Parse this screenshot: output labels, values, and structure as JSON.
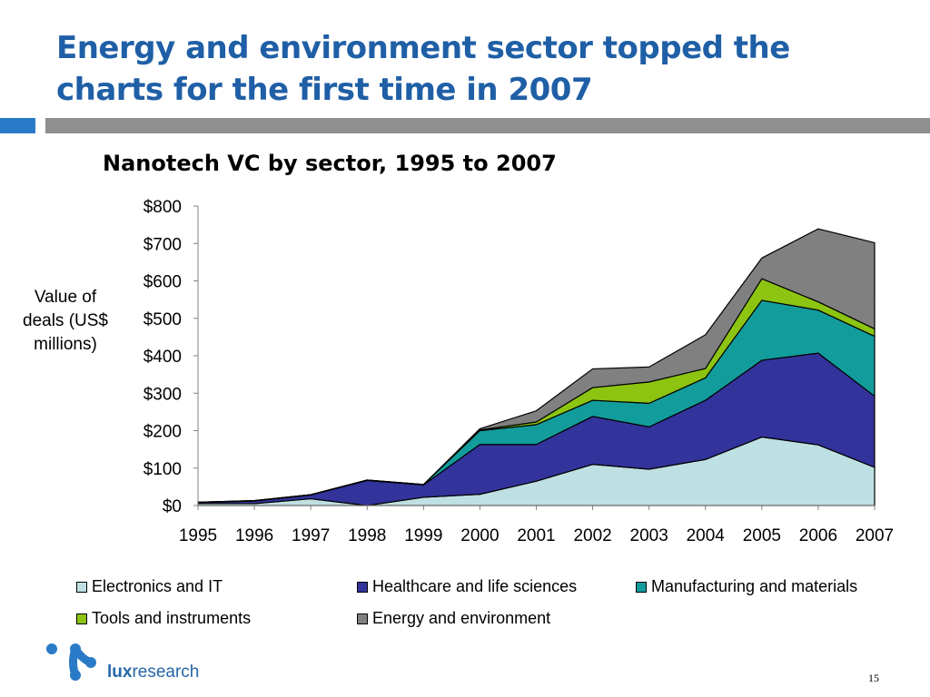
{
  "slide": {
    "title": "Energy and environment sector topped the charts for the first time in 2007",
    "page_number": "15",
    "logo": {
      "brand": "lux",
      "suffix": "research"
    }
  },
  "colors": {
    "title": "#1f5fa6",
    "accent_bar": "#2a7bc7",
    "rule_bar": "#8f8f8f",
    "logo": "#2566a8"
  },
  "chart_data": {
    "type": "area",
    "stacked": true,
    "title": "Nanotech VC by sector, 1995 to 2007",
    "ylabel": "Value of deals (US$ millions)",
    "xlabel": "",
    "x": [
      "1995",
      "1996",
      "1997",
      "1998",
      "1999",
      "2000",
      "2001",
      "2002",
      "2003",
      "2004",
      "2005",
      "2006",
      "2007"
    ],
    "ylim": [
      0,
      800
    ],
    "yticks": [
      "$0",
      "$100",
      "$200",
      "$300",
      "$400",
      "$500",
      "$600",
      "$700",
      "$800"
    ],
    "grid": false,
    "legend_position": "bottom",
    "series": [
      {
        "name": "Electronics and IT",
        "color": "#bfe0e3",
        "values": [
          5,
          5,
          18,
          0,
          22,
          30,
          65,
          110,
          97,
          123,
          183,
          162,
          102
        ]
      },
      {
        "name": "Healthcare and life sciences",
        "color": "#33339c",
        "values": [
          3,
          7,
          10,
          67,
          33,
          133,
          98,
          128,
          113,
          158,
          205,
          245,
          190
        ]
      },
      {
        "name": "Manufacturing and materials",
        "color": "#139c9c",
        "values": [
          1,
          1,
          1,
          1,
          1,
          37,
          53,
          43,
          63,
          60,
          160,
          115,
          160
        ]
      },
      {
        "name": "Tools and instruments",
        "color": "#8cc411",
        "values": [
          0,
          0,
          0,
          0,
          0,
          2,
          7,
          34,
          57,
          25,
          58,
          22,
          20
        ]
      },
      {
        "name": "Energy and environment",
        "color": "#808080",
        "values": [
          0,
          0,
          0,
          0,
          0,
          3,
          30,
          50,
          40,
          90,
          55,
          195,
          230
        ]
      }
    ]
  }
}
